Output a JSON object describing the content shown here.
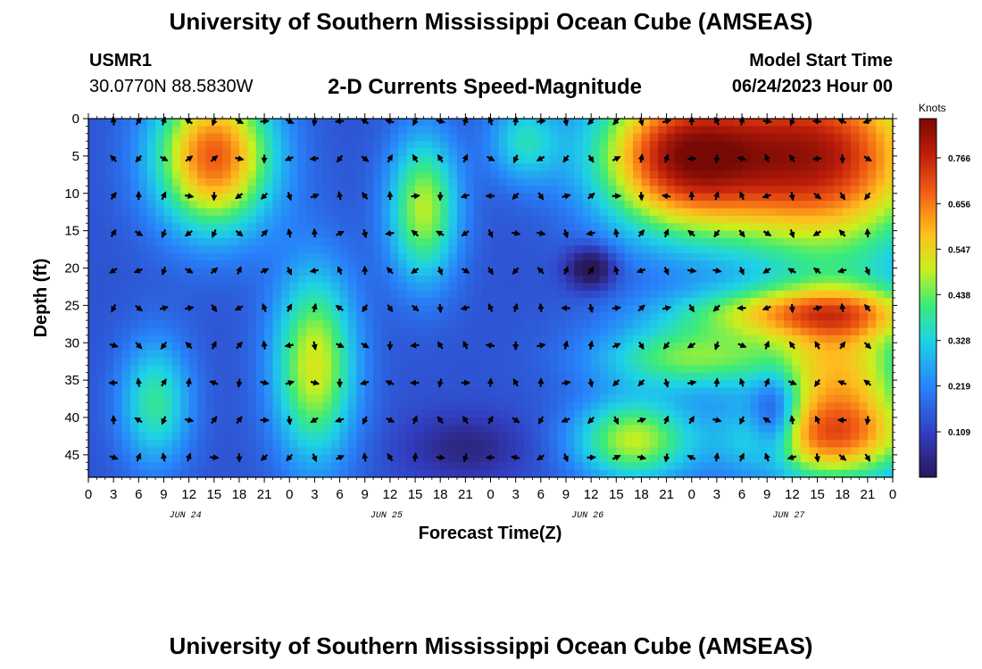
{
  "header": {
    "title": "University of Southern Mississippi Ocean Cube (AMSEAS)",
    "station_id": "USMR1",
    "station_coords": "30.0770N  88.5830W",
    "chart_title": "2-D Currents Speed-Magnitude",
    "model_start_label": "Model Start Time",
    "model_start_value": "06/24/2023 Hour 00"
  },
  "footer": {
    "title": "University of Southern Mississippi Ocean Cube (AMSEAS)"
  },
  "chart_data": {
    "type": "heatmap",
    "title": "2-D Currents Speed-Magnitude",
    "xlabel": "Forecast Time(Z)",
    "ylabel": "Depth (ft)",
    "x_tick_labels": [
      "0",
      "3",
      "6",
      "9",
      "12",
      "15",
      "18",
      "21",
      "0",
      "3",
      "6",
      "9",
      "12",
      "15",
      "18",
      "21",
      "0",
      "3",
      "6",
      "9",
      "12",
      "15",
      "18",
      "21",
      "0",
      "3",
      "6",
      "9",
      "12",
      "15",
      "18",
      "21",
      "0"
    ],
    "x_hours": [
      0,
      3,
      6,
      9,
      12,
      15,
      18,
      21,
      24,
      27,
      30,
      33,
      36,
      39,
      42,
      45,
      48,
      51,
      54,
      57,
      60,
      63,
      66,
      69,
      72,
      75,
      78,
      81,
      84,
      87,
      90,
      93,
      96
    ],
    "date_labels": [
      {
        "text": "JUN 24",
        "hour": 12
      },
      {
        "text": "JUN 25",
        "hour": 36
      },
      {
        "text": "JUN 26",
        "hour": 60
      },
      {
        "text": "JUN 27",
        "hour": 84
      }
    ],
    "y_ticks": [
      0,
      5,
      10,
      15,
      20,
      25,
      30,
      35,
      40,
      45
    ],
    "ylim": [
      0,
      48
    ],
    "xlim": [
      0,
      96
    ],
    "colorbar": {
      "label": "Knots",
      "ticks": [
        "0.109",
        "0.219",
        "0.328",
        "0.438",
        "0.547",
        "0.656",
        "0.766"
      ],
      "tick_values": [
        0.109,
        0.219,
        0.328,
        0.438,
        0.547,
        0.656,
        0.766
      ],
      "range": [
        0.0,
        0.86
      ]
    },
    "speed_blobs": [
      {
        "h": 15,
        "d": 5,
        "sh": 5,
        "sd": 7,
        "a": 0.55
      },
      {
        "h": 40,
        "d": 12,
        "sh": 3,
        "sd": 7,
        "a": 0.35
      },
      {
        "h": 70,
        "d": 5,
        "sh": 7,
        "sd": 7,
        "a": 0.55
      },
      {
        "h": 87,
        "d": 5,
        "sh": 10,
        "sd": 9,
        "a": 0.65
      },
      {
        "h": 27,
        "d": 33,
        "sh": 3.5,
        "sd": 9,
        "a": 0.38
      },
      {
        "h": 8,
        "d": 38,
        "sh": 3,
        "sd": 6,
        "a": 0.25
      },
      {
        "h": 85,
        "d": 26,
        "sh": 11,
        "sd": 2.5,
        "a": 0.35
      },
      {
        "h": 90,
        "d": 34,
        "sh": 6,
        "sd": 8,
        "a": 0.4
      },
      {
        "h": 72,
        "d": 32,
        "sh": 8,
        "sd": 3,
        "a": 0.3
      },
      {
        "h": 65,
        "d": 43,
        "sh": 5,
        "sd": 4,
        "a": 0.35
      },
      {
        "h": 88,
        "d": 43,
        "sh": 8,
        "sd": 4,
        "a": 0.35
      },
      {
        "h": 52,
        "d": 3,
        "sh": 3,
        "sd": 4,
        "a": 0.2
      },
      {
        "h": 60,
        "d": 20,
        "sh": 2,
        "sd": 2,
        "a": -0.2
      },
      {
        "h": 82,
        "d": 40,
        "sh": 2,
        "sd": 4,
        "a": -0.25
      },
      {
        "h": 45,
        "d": 44,
        "sh": 5,
        "sd": 3,
        "a": -0.1
      }
    ],
    "speed_base": 0.14,
    "arrow_depths": [
      0,
      5,
      10,
      15,
      20,
      25,
      30,
      35,
      40,
      45
    ],
    "arrow_hours_step": 3,
    "arrow_start_hour": 0
  }
}
